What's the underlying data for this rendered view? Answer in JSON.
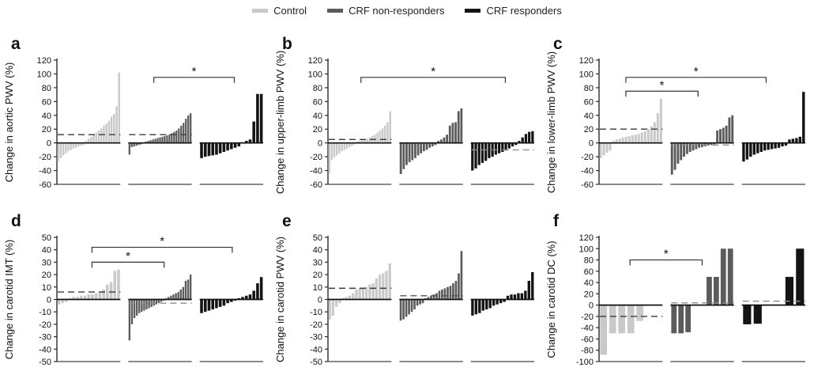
{
  "chart_data": {
    "type": "bar",
    "subtype": "waterfall-individual-change",
    "legend_position": "top-center",
    "grid": false,
    "legend_items": [
      {
        "label": "Control",
        "color": "#c9c9c9"
      },
      {
        "label": "CRF non-responders",
        "color": "#5b5b5b"
      },
      {
        "label": "CRF responders",
        "color": "#141414"
      }
    ],
    "colors": {
      "control": "#c9c9c9",
      "nonresp": "#5b5b5b",
      "resp": "#141414"
    },
    "panels": [
      {
        "letter": "a",
        "ylabel": "Change in aortic PWV (%)",
        "ylim": [
          -60,
          120
        ],
        "ystep": 20,
        "groups": [
          {
            "name": "Control",
            "color_key": "control",
            "dash": 12,
            "dash_color": "#3a3a3a",
            "values": [
              -27,
              -22,
              -18,
              -15,
              -12,
              -10,
              -8,
              -7,
              -5,
              -4,
              -3,
              3,
              6,
              9,
              12,
              15,
              18,
              21,
              25,
              28,
              32,
              38,
              42,
              53,
              102
            ]
          },
          {
            "name": "CRF non-responders",
            "color_key": "nonresp",
            "dash": 12,
            "dash_color": "#3a3a3a",
            "values": [
              -17,
              -6,
              -5,
              -4,
              -3,
              -2,
              1,
              2,
              3,
              4,
              5,
              6,
              7,
              8,
              9,
              10,
              11,
              12,
              14,
              16,
              18,
              21,
              25,
              29,
              35,
              40,
              43
            ]
          },
          {
            "name": "CRF responders",
            "color_key": "resp",
            "dash": null,
            "dash_color": null,
            "values": [
              -22,
              -20,
              -19,
              -18,
              -17,
              -15,
              -13,
              -11,
              -9,
              -7,
              -5,
              1,
              3,
              5,
              31,
              71,
              71
            ]
          }
        ],
        "brackets": [
          {
            "x1f": 0.47,
            "x2f": 0.86,
            "y": 95,
            "label": "*"
          }
        ]
      },
      {
        "letter": "b",
        "ylabel": "Change in upper-limb PWV (%)",
        "ylim": [
          -60,
          120
        ],
        "ystep": 20,
        "groups": [
          {
            "name": "Control",
            "color_key": "control",
            "dash": 5,
            "dash_color": "#3a3a3a",
            "values": [
              -44,
              -25,
              -21,
              -18,
              -15,
              -12,
              -10,
              -8,
              -6,
              -4,
              -2,
              2,
              3,
              4,
              5,
              6,
              8,
              10,
              12,
              15,
              18,
              21,
              25,
              30,
              46
            ]
          },
          {
            "name": "CRF non-responders",
            "color_key": "nonresp",
            "dash": null,
            "dash_color": null,
            "values": [
              -45,
              -38,
              -32,
              -28,
              -25,
              -22,
              -18,
              -15,
              -12,
              -10,
              -7,
              -5,
              -3,
              3,
              5,
              8,
              12,
              25,
              29,
              30,
              46,
              50
            ]
          },
          {
            "name": "CRF responders",
            "color_key": "resp",
            "dash": -10,
            "dash_color": "#8f8f8f",
            "values": [
              -40,
              -37,
              -32,
              -29,
              -26,
              -22,
              -20,
              -17,
              -15,
              -13,
              -11,
              -8,
              -5,
              -3,
              3,
              8,
              13,
              16,
              17
            ]
          }
        ],
        "brackets": [
          {
            "x1f": 0.16,
            "x2f": 0.86,
            "y": 95,
            "label": "*"
          }
        ]
      },
      {
        "letter": "c",
        "ylabel": "Change in lower-limb PWV (%)",
        "ylim": [
          -60,
          120
        ],
        "ystep": 20,
        "groups": [
          {
            "name": "Control",
            "color_key": "control",
            "dash": 20,
            "dash_color": "#3a3a3a",
            "values": [
              -22,
              -18,
              -14,
              -11,
              3,
              5,
              6,
              8,
              9,
              10,
              11,
              12,
              13,
              15,
              17,
              20,
              24,
              30,
              43,
              64
            ]
          },
          {
            "name": "CRF non-responders",
            "color_key": "nonresp",
            "dash": -3,
            "dash_color": "#8f8f8f",
            "values": [
              -46,
              -39,
              -30,
              -25,
              -20,
              -16,
              -13,
              -11,
              -9,
              -7,
              -6,
              -5,
              -4,
              -3,
              -2,
              18,
              20,
              22,
              25,
              37,
              40
            ]
          },
          {
            "name": "CRF responders",
            "color_key": "resp",
            "dash": null,
            "dash_color": null,
            "values": [
              -27,
              -24,
              -20,
              -17,
              -15,
              -13,
              -11,
              -10,
              -9,
              -8,
              -7,
              -5,
              -4,
              5,
              6,
              7,
              9,
              74
            ]
          }
        ],
        "brackets": [
          {
            "x1f": 0.13,
            "x2f": 0.48,
            "y": 75,
            "label": "*"
          },
          {
            "x1f": 0.13,
            "x2f": 0.81,
            "y": 95,
            "label": "*"
          }
        ]
      },
      {
        "letter": "d",
        "ylabel": "Change in carotid IMT (%)",
        "ylim": [
          -50,
          50
        ],
        "ystep": 10,
        "groups": [
          {
            "name": "Control",
            "color_key": "control",
            "dash": 6,
            "dash_color": "#3a3a3a",
            "values": [
              -4,
              -3,
              -2,
              1,
              2,
              2,
              3,
              3,
              4,
              4,
              5,
              6,
              8,
              12,
              14,
              23,
              24
            ]
          },
          {
            "name": "CRF non-responders",
            "color_key": "nonresp",
            "dash": -3,
            "dash_color": "#8f8f8f",
            "values": [
              -33,
              -20,
              -15,
              -13,
              -11,
              -10,
              -9,
              -8,
              -7,
              -6,
              -5,
              -4,
              -3,
              -2,
              -1,
              1,
              2,
              3,
              4,
              5,
              6,
              8,
              10,
              15,
              16,
              20
            ]
          },
          {
            "name": "CRF responders",
            "color_key": "resp",
            "dash": null,
            "dash_color": null,
            "values": [
              -11,
              -10,
              -9,
              -8,
              -7,
              -6,
              -5,
              -3,
              -2,
              -1,
              1,
              2,
              3,
              4,
              7,
              13,
              18
            ]
          }
        ],
        "brackets": [
          {
            "x1f": 0.17,
            "x2f": 0.52,
            "y": 30,
            "label": "*"
          },
          {
            "x1f": 0.17,
            "x2f": 0.85,
            "y": 42,
            "label": "*"
          }
        ]
      },
      {
        "letter": "e",
        "ylabel": "Change in carotid PWV (%)",
        "ylim": [
          -50,
          50
        ],
        "ystep": 10,
        "groups": [
          {
            "name": "Control",
            "color_key": "control",
            "dash": 9,
            "dash_color": "#3a3a3a",
            "values": [
              -16,
              -13,
              -6,
              -3,
              1,
              2,
              3,
              5,
              8,
              9,
              9,
              10,
              12,
              13,
              17,
              20,
              21,
              23,
              29
            ]
          },
          {
            "name": "CRF non-responders",
            "color_key": "nonresp",
            "dash": 3,
            "dash_color": "#555555",
            "values": [
              -17,
              -16,
              -14,
              -12,
              -10,
              -8,
              -5,
              -4,
              -3,
              1,
              2,
              3,
              4,
              5,
              7,
              8,
              9,
              10,
              11,
              13,
              15,
              21,
              39
            ]
          },
          {
            "name": "CRF responders",
            "color_key": "resp",
            "dash": null,
            "dash_color": null,
            "values": [
              -13,
              -12,
              -11,
              -9,
              -8,
              -7,
              -5,
              -4,
              -3,
              -2,
              3,
              4,
              4,
              5,
              5,
              7,
              15,
              22
            ]
          }
        ],
        "brackets": []
      },
      {
        "letter": "f",
        "ylabel": "Change in carotid DC (%)",
        "ylim": [
          -100,
          120
        ],
        "ystep": 20,
        "groups": [
          {
            "name": "Control",
            "color_key": "control",
            "dash": -20,
            "dash_color": "#3a3a3a",
            "values": [
              -88,
              -50,
              -50,
              -50,
              -28,
              0,
              0
            ]
          },
          {
            "name": "CRF non-responders",
            "color_key": "nonresp",
            "dash": 4,
            "dash_color": "#8f8f8f",
            "values": [
              -50,
              -50,
              -48,
              0,
              0,
              50,
              50,
              100,
              100
            ]
          },
          {
            "name": "CRF responders",
            "color_key": "resp",
            "dash": 7,
            "dash_color": "#8f8f8f",
            "values": [
              -34,
              -33,
              0,
              0,
              50,
              100
            ]
          }
        ],
        "brackets": [
          {
            "x1f": 0.15,
            "x2f": 0.5,
            "y": 80,
            "label": "*"
          }
        ]
      }
    ]
  }
}
